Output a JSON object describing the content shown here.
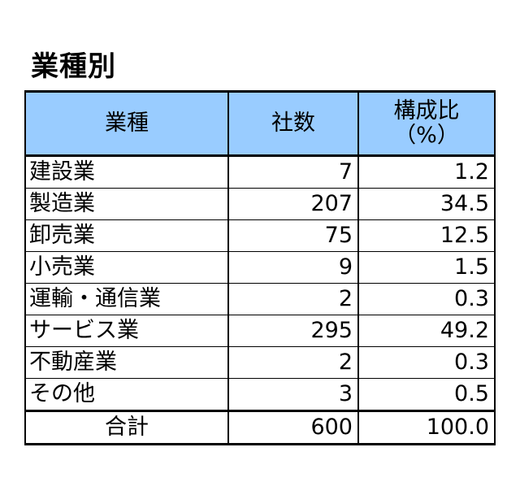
{
  "title": "業種別",
  "table": {
    "headers": {
      "category": "業種",
      "count": "社数",
      "ratio_line1": "構成比",
      "ratio_line2": "（%）"
    },
    "rows": [
      {
        "category": "建設業",
        "count": "7",
        "ratio": "1.2"
      },
      {
        "category": "製造業",
        "count": "207",
        "ratio": "34.5"
      },
      {
        "category": "卸売業",
        "count": "75",
        "ratio": "12.5"
      },
      {
        "category": "小売業",
        "count": "9",
        "ratio": "1.5"
      },
      {
        "category": "運輸・通信業",
        "count": "2",
        "ratio": "0.3"
      },
      {
        "category": "サービス業",
        "count": "295",
        "ratio": "49.2"
      },
      {
        "category": "不動産業",
        "count": "2",
        "ratio": "0.3"
      },
      {
        "category": "その他",
        "count": "3",
        "ratio": "0.5"
      }
    ],
    "total": {
      "category": "合計",
      "count": "600",
      "ratio": "100.0"
    }
  },
  "colors": {
    "header_background": "#99ccff",
    "border": "#000000"
  }
}
